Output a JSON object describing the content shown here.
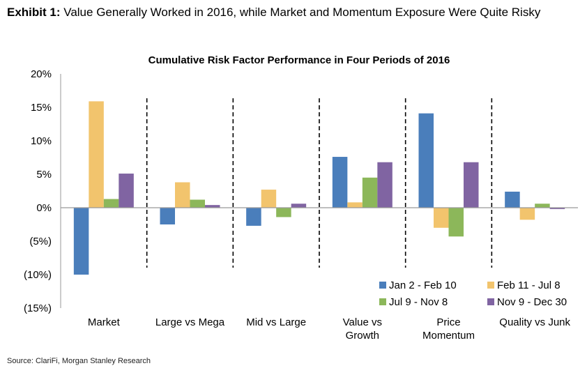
{
  "header": {
    "exhibit_label": "Exhibit 1:",
    "exhibit_title": "Value Generally Worked in 2016, while Market and Momentum Exposure Were Quite Risky"
  },
  "footer": {
    "source": "Source: ClariFi, Morgan Stanley Research"
  },
  "colors": {
    "jan": "#4a7ebb",
    "feb": "#f2c46d",
    "jul": "#8cb75a",
    "nov": "#8064a2"
  },
  "chart_data": {
    "type": "bar",
    "title": "Cumulative Risk Factor Performance in Four Periods of 2016",
    "xlabel": "",
    "ylabel": "",
    "ylim": [
      -15,
      20
    ],
    "yticks": [
      20,
      15,
      10,
      5,
      0,
      -5,
      -10,
      -15
    ],
    "ytick_labels": [
      "20%",
      "15%",
      "10%",
      "5%",
      "0%",
      "(5%)",
      "(10%)",
      "(15%)"
    ],
    "categories": [
      [
        "Market"
      ],
      [
        "Large vs Mega"
      ],
      [
        "Mid vs Large"
      ],
      [
        "Value vs",
        "Growth"
      ],
      [
        "Price",
        "Momentum"
      ],
      [
        "Quality vs Junk"
      ]
    ],
    "series": [
      {
        "name": "Jan 2 - Feb 10",
        "color": "#4a7ebb",
        "values": [
          -10.0,
          -2.5,
          -2.7,
          7.6,
          14.1,
          2.4
        ]
      },
      {
        "name": "Feb 11 - Jul 8",
        "color": "#f2c46d",
        "values": [
          15.9,
          3.8,
          2.7,
          0.8,
          -3.0,
          -1.8
        ]
      },
      {
        "name": "Jul 9 - Nov 8",
        "color": "#8cb75a",
        "values": [
          1.3,
          1.2,
          -1.4,
          4.5,
          -4.3,
          0.6
        ]
      },
      {
        "name": "Nov 9 - Dec 30",
        "color": "#8064a2",
        "values": [
          5.1,
          0.4,
          0.6,
          6.8,
          6.8,
          -0.2
        ]
      }
    ],
    "grid": false,
    "legend_position": "bottom-right",
    "group_separators": "dashed"
  }
}
